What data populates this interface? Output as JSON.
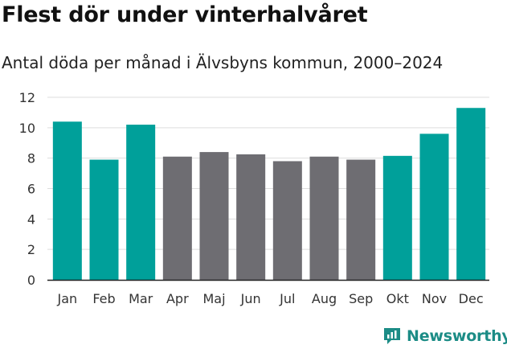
{
  "header": {
    "title": "Flest dör under vinterhalvåret",
    "subtitle": "Antal döda per månad i Älvsbyns kommun, 2000–2024"
  },
  "logo": {
    "text": "Newsworthy",
    "icon": "newsworthy-chart-icon",
    "color": "#1c8c86"
  },
  "colors": {
    "highlight": "#00a09a",
    "other": "#6e6d72",
    "grid": "#dddddd"
  },
  "chart_data": {
    "type": "bar",
    "categories": [
      "Jan",
      "Feb",
      "Mar",
      "Apr",
      "Maj",
      "Jun",
      "Jul",
      "Aug",
      "Sep",
      "Okt",
      "Nov",
      "Dec"
    ],
    "values": [
      10.4,
      7.9,
      10.2,
      8.1,
      8.4,
      8.25,
      7.8,
      8.1,
      7.9,
      8.15,
      9.6,
      11.3
    ],
    "highlight": [
      true,
      true,
      true,
      false,
      false,
      false,
      false,
      false,
      false,
      true,
      true,
      true
    ],
    "title": "Flest dör under vinterhalvåret",
    "subtitle": "Antal döda per månad i Älvsbyns kommun, 2000–2024",
    "xlabel": "",
    "ylabel": "",
    "ylim": [
      0,
      12
    ],
    "yticks": [
      0,
      2,
      4,
      6,
      8,
      10,
      12
    ],
    "grid": true,
    "legend": "none"
  }
}
